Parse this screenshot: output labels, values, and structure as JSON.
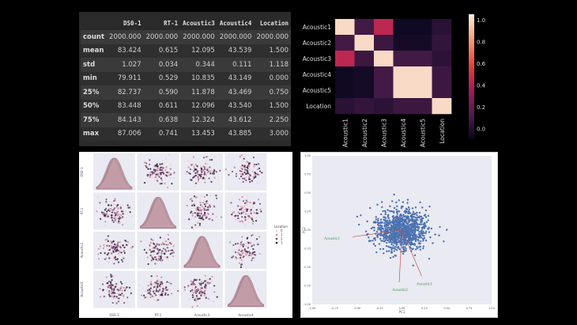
{
  "summary_table": {
    "columns": [
      "DS0-1",
      "RT-1",
      "Acoustic3",
      "Acoustic4",
      "Location"
    ],
    "rows": [
      {
        "label": "count",
        "values": [
          "2000.000",
          "2000.000",
          "2000.000",
          "2000.000",
          "2000.000"
        ]
      },
      {
        "label": "mean",
        "values": [
          "83.424",
          "0.615",
          "12.095",
          "43.539",
          "1.500"
        ]
      },
      {
        "label": "std",
        "values": [
          "1.027",
          "0.034",
          "0.344",
          "0.111",
          "1.118"
        ]
      },
      {
        "label": "min",
        "values": [
          "79.911",
          "0.529",
          "10.835",
          "43.149",
          "0.000"
        ]
      },
      {
        "label": "25%",
        "values": [
          "82.737",
          "0.590",
          "11.878",
          "43.469",
          "0.750"
        ]
      },
      {
        "label": "50%",
        "values": [
          "83.448",
          "0.611",
          "12.096",
          "43.540",
          "1.500"
        ]
      },
      {
        "label": "75%",
        "values": [
          "84.143",
          "0.638",
          "12.324",
          "43.612",
          "2.250"
        ]
      },
      {
        "label": "max",
        "values": [
          "87.006",
          "0.741",
          "13.453",
          "43.885",
          "3.000"
        ]
      }
    ]
  },
  "chart_data": [
    {
      "type": "heatmap",
      "title": "",
      "labels": [
        "Acoustic1",
        "Acoustic2",
        "Acoustic3",
        "Acoustic4",
        "Acoustic5",
        "Location"
      ],
      "matrix": [
        [
          1.0,
          0.1,
          0.45,
          -0.06,
          -0.06,
          0.02
        ],
        [
          0.1,
          1.0,
          0.08,
          -0.04,
          -0.04,
          0.05
        ],
        [
          0.45,
          0.08,
          1.0,
          0.1,
          0.1,
          0.03
        ],
        [
          -0.06,
          -0.04,
          0.1,
          1.0,
          1.0,
          0.08
        ],
        [
          -0.06,
          -0.04,
          0.1,
          1.0,
          1.0,
          0.08
        ],
        [
          0.02,
          0.05,
          0.03,
          0.08,
          0.08,
          1.0
        ]
      ],
      "colorbar_ticks": [
        "0.0",
        "0.2",
        "0.4",
        "0.6",
        "0.8",
        "1.0"
      ],
      "vmin": -0.1,
      "vmax": 1.05
    },
    {
      "type": "scatter",
      "title": "",
      "variables": [
        "DS0-1",
        "RT-1",
        "Acoustic3",
        "Acoustic4"
      ],
      "hue": "Location",
      "hue_levels": [
        "0",
        "1",
        "2",
        "3"
      ],
      "hue_colors": [
        "#f0d0d6",
        "#c98a9e",
        "#7a4a72",
        "#2e1a3c"
      ],
      "points_per_panel": 220
    },
    {
      "type": "scatter",
      "title": "",
      "xlabel": "PC1",
      "ylabel": "PC2",
      "xlim": [
        -1.0,
        1.0
      ],
      "ylim": [
        -1.0,
        1.0
      ],
      "xticks": [
        "-1.00",
        "-0.75",
        "-0.50",
        "-0.25",
        "0.00",
        "0.25",
        "0.50",
        "0.75",
        "1.00"
      ],
      "yticks": [
        "-1.00",
        "-0.75",
        "-0.50",
        "-0.25",
        "0.00",
        "0.25",
        "0.50",
        "0.75",
        "1.00"
      ],
      "n_points": 2000,
      "point_sd": 0.14,
      "point_color": "#4c72b0",
      "loadings": [
        {
          "name": "Acoustic3",
          "x": -0.55,
          "y": -0.09,
          "label_x": -0.78,
          "label_y": -0.13
        },
        {
          "name": "Acoustic2",
          "x": -0.03,
          "y": -0.7,
          "label_x": -0.02,
          "label_y": -0.82
        },
        {
          "name": "Acoustic1",
          "x": 0.22,
          "y": -0.62,
          "label_x": 0.25,
          "label_y": -0.74
        }
      ]
    }
  ]
}
